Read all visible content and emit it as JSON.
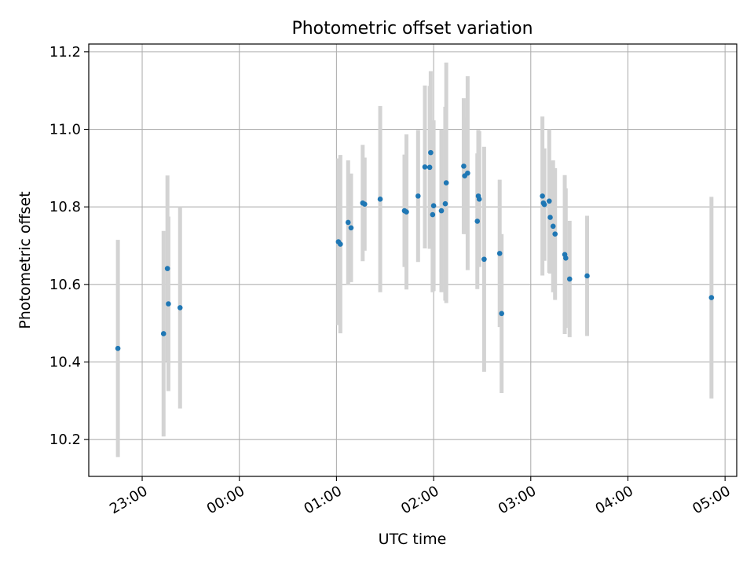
{
  "chart_data": {
    "type": "scatter",
    "title": "Photometric offset variation",
    "xlabel": "UTC time",
    "ylabel": "Photometric offset",
    "xlim_hours": [
      -1.55,
      5.12
    ],
    "ylim": [
      10.105,
      11.22
    ],
    "xticks": [
      {
        "value": -1,
        "label": "23:00"
      },
      {
        "value": 0,
        "label": "00:00"
      },
      {
        "value": 1,
        "label": "01:00"
      },
      {
        "value": 2,
        "label": "02:00"
      },
      {
        "value": 3,
        "label": "03:00"
      },
      {
        "value": 4,
        "label": "04:00"
      },
      {
        "value": 5,
        "label": "05:00"
      }
    ],
    "yticks": [
      {
        "value": 10.2,
        "label": "10.2"
      },
      {
        "value": 10.4,
        "label": "10.4"
      },
      {
        "value": 10.6,
        "label": "10.6"
      },
      {
        "value": 10.8,
        "label": "10.8"
      },
      {
        "value": 11.0,
        "label": "11.0"
      },
      {
        "value": 11.2,
        "label": "11.2"
      }
    ],
    "grid": true,
    "point_color": "#1f77b4",
    "errorbar_color": "#d3d3d3",
    "points": [
      {
        "t": -1.25,
        "y": 10.435,
        "err": 0.28
      },
      {
        "t": -0.78,
        "y": 10.473,
        "err": 0.265
      },
      {
        "t": -0.74,
        "y": 10.641,
        "err": 0.24
      },
      {
        "t": -0.73,
        "y": 10.55,
        "err": 0.225
      },
      {
        "t": -0.61,
        "y": 10.54,
        "err": 0.26
      },
      {
        "t": 1.02,
        "y": 10.71,
        "err": 0.215
      },
      {
        "t": 1.04,
        "y": 10.704,
        "err": 0.23
      },
      {
        "t": 1.12,
        "y": 10.76,
        "err": 0.16
      },
      {
        "t": 1.15,
        "y": 10.746,
        "err": 0.14
      },
      {
        "t": 1.27,
        "y": 10.81,
        "err": 0.15
      },
      {
        "t": 1.29,
        "y": 10.807,
        "err": 0.12
      },
      {
        "t": 1.45,
        "y": 10.82,
        "err": 0.24
      },
      {
        "t": 1.7,
        "y": 10.79,
        "err": 0.145
      },
      {
        "t": 1.72,
        "y": 10.787,
        "err": 0.2
      },
      {
        "t": 1.84,
        "y": 10.828,
        "err": 0.17
      },
      {
        "t": 1.91,
        "y": 10.903,
        "err": 0.21
      },
      {
        "t": 1.96,
        "y": 10.902,
        "err": 0.21
      },
      {
        "t": 1.97,
        "y": 10.94,
        "err": 0.21
      },
      {
        "t": 1.99,
        "y": 10.78,
        "err": 0.2
      },
      {
        "t": 2.0,
        "y": 10.803,
        "err": 0.22
      },
      {
        "t": 2.08,
        "y": 10.79,
        "err": 0.21
      },
      {
        "t": 2.12,
        "y": 10.808,
        "err": 0.25
      },
      {
        "t": 2.13,
        "y": 10.862,
        "err": 0.31
      },
      {
        "t": 2.31,
        "y": 10.905,
        "err": 0.175
      },
      {
        "t": 2.32,
        "y": 10.88,
        "err": 0.15
      },
      {
        "t": 2.35,
        "y": 10.887,
        "err": 0.25
      },
      {
        "t": 2.45,
        "y": 10.763,
        "err": 0.175
      },
      {
        "t": 2.46,
        "y": 10.828,
        "err": 0.17
      },
      {
        "t": 2.47,
        "y": 10.82,
        "err": 0.175
      },
      {
        "t": 2.52,
        "y": 10.665,
        "err": 0.29
      },
      {
        "t": 2.68,
        "y": 10.68,
        "err": 0.19
      },
      {
        "t": 2.7,
        "y": 10.525,
        "err": 0.205
      },
      {
        "t": 3.12,
        "y": 10.828,
        "err": 0.205
      },
      {
        "t": 3.13,
        "y": 10.81,
        "err": 0.14
      },
      {
        "t": 3.14,
        "y": 10.806,
        "err": 0.145
      },
      {
        "t": 3.19,
        "y": 10.815,
        "err": 0.185
      },
      {
        "t": 3.2,
        "y": 10.773,
        "err": 0.145
      },
      {
        "t": 3.23,
        "y": 10.75,
        "err": 0.17
      },
      {
        "t": 3.25,
        "y": 10.73,
        "err": 0.17
      },
      {
        "t": 3.35,
        "y": 10.677,
        "err": 0.205
      },
      {
        "t": 3.36,
        "y": 10.668,
        "err": 0.18
      },
      {
        "t": 3.4,
        "y": 10.614,
        "err": 0.15
      },
      {
        "t": 3.58,
        "y": 10.622,
        "err": 0.155
      },
      {
        "t": 4.86,
        "y": 10.566,
        "err": 0.26
      }
    ]
  }
}
